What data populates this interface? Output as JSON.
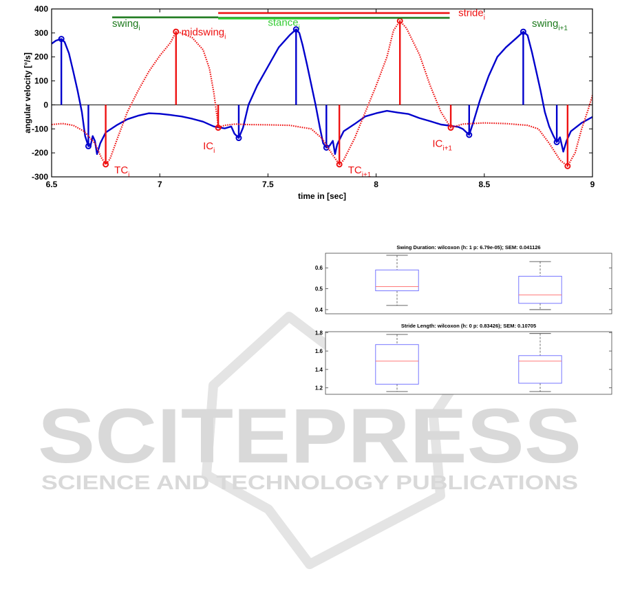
{
  "watermark": {
    "word": "SCITEPRESS",
    "tagline": "SCIENCE AND TECHNOLOGY PUBLICATIONS",
    "color": "#d9d9d9"
  },
  "chart_data": [
    {
      "type": "line",
      "xlabel": "time in [sec]",
      "ylabel": "angular velocity [°/s]",
      "xlim": [
        6.5,
        9
      ],
      "ylim": [
        -300,
        400
      ],
      "xticks": [
        6.5,
        7,
        7.5,
        8,
        8.5,
        9
      ],
      "yticks": [
        -300,
        -200,
        -100,
        0,
        100,
        200,
        300,
        400
      ],
      "grid": false,
      "series": [
        {
          "color": "#0000cc",
          "style": "solid",
          "points": [
            [
              6.5,
              255
            ],
            [
              6.52,
              268
            ],
            [
              6.545,
              275
            ],
            [
              6.56,
              262
            ],
            [
              6.58,
              215
            ],
            [
              6.6,
              140
            ],
            [
              6.62,
              60
            ],
            [
              6.64,
              -30
            ],
            [
              6.655,
              -130
            ],
            [
              6.67,
              -172
            ],
            [
              6.68,
              -170
            ],
            [
              6.69,
              -130
            ],
            [
              6.7,
              -150
            ],
            [
              6.71,
              -205
            ],
            [
              6.725,
              -160
            ],
            [
              6.75,
              -115
            ],
            [
              6.8,
              -85
            ],
            [
              6.85,
              -60
            ],
            [
              6.9,
              -45
            ],
            [
              6.95,
              -35
            ],
            [
              7.0,
              -37
            ],
            [
              7.05,
              -42
            ],
            [
              7.1,
              -48
            ],
            [
              7.15,
              -58
            ],
            [
              7.2,
              -70
            ],
            [
              7.25,
              -90
            ],
            [
              7.3,
              -98
            ],
            [
              7.33,
              -90
            ],
            [
              7.345,
              -120
            ],
            [
              7.365,
              -138
            ],
            [
              7.385,
              -95
            ],
            [
              7.41,
              0
            ],
            [
              7.45,
              80
            ],
            [
              7.5,
              160
            ],
            [
              7.55,
              240
            ],
            [
              7.6,
              290
            ],
            [
              7.63,
              315
            ],
            [
              7.645,
              300
            ],
            [
              7.66,
              250
            ],
            [
              7.68,
              170
            ],
            [
              7.7,
              85
            ],
            [
              7.72,
              0
            ],
            [
              7.74,
              -95
            ],
            [
              7.755,
              -160
            ],
            [
              7.77,
              -178
            ],
            [
              7.785,
              -170
            ],
            [
              7.8,
              -150
            ],
            [
              7.81,
              -205
            ],
            [
              7.82,
              -165
            ],
            [
              7.85,
              -110
            ],
            [
              7.9,
              -80
            ],
            [
              7.95,
              -48
            ],
            [
              8.0,
              -35
            ],
            [
              8.05,
              -25
            ],
            [
              8.1,
              -32
            ],
            [
              8.15,
              -38
            ],
            [
              8.2,
              -55
            ],
            [
              8.25,
              -68
            ],
            [
              8.3,
              -82
            ],
            [
              8.35,
              -88
            ],
            [
              8.38,
              -92
            ],
            [
              8.4,
              -100
            ],
            [
              8.43,
              -125
            ],
            [
              8.45,
              -70
            ],
            [
              8.48,
              20
            ],
            [
              8.52,
              120
            ],
            [
              8.56,
              200
            ],
            [
              8.6,
              240
            ],
            [
              8.65,
              280
            ],
            [
              8.68,
              305
            ],
            [
              8.7,
              290
            ],
            [
              8.72,
              220
            ],
            [
              8.74,
              140
            ],
            [
              8.76,
              60
            ],
            [
              8.78,
              -30
            ],
            [
              8.8,
              -90
            ],
            [
              8.82,
              -130
            ],
            [
              8.835,
              -155
            ],
            [
              8.85,
              -135
            ],
            [
              8.865,
              -195
            ],
            [
              8.88,
              -150
            ],
            [
              8.9,
              -110
            ],
            [
              8.95,
              -75
            ],
            [
              9.0,
              -50
            ]
          ],
          "markers": [
            [
              6.545,
              275
            ],
            [
              6.67,
              -172
            ],
            [
              7.365,
              -138
            ],
            [
              7.63,
              315
            ],
            [
              7.77,
              -178
            ],
            [
              8.43,
              -125
            ],
            [
              8.68,
              305
            ],
            [
              8.835,
              -155
            ]
          ],
          "stems": [
            6.545,
            6.67,
            7.365,
            7.63,
            7.77,
            8.43,
            8.68,
            8.835
          ]
        },
        {
          "color": "#ee1111",
          "style": "dotted",
          "points": [
            [
              6.5,
              -82
            ],
            [
              6.55,
              -78
            ],
            [
              6.6,
              -85
            ],
            [
              6.65,
              -110
            ],
            [
              6.7,
              -160
            ],
            [
              6.73,
              -220
            ],
            [
              6.75,
              -248
            ],
            [
              6.77,
              -225
            ],
            [
              6.8,
              -150
            ],
            [
              6.85,
              -30
            ],
            [
              6.9,
              60
            ],
            [
              6.95,
              140
            ],
            [
              7.0,
              205
            ],
            [
              7.05,
              260
            ],
            [
              7.075,
              305
            ],
            [
              7.1,
              300
            ],
            [
              7.15,
              280
            ],
            [
              7.2,
              230
            ],
            [
              7.23,
              150
            ],
            [
              7.25,
              50
            ],
            [
              7.265,
              -50
            ],
            [
              7.27,
              -95
            ],
            [
              7.3,
              -85
            ],
            [
              7.35,
              -80
            ],
            [
              7.4,
              -82
            ],
            [
              7.5,
              -83
            ],
            [
              7.6,
              -85
            ],
            [
              7.7,
              -100
            ],
            [
              7.75,
              -140
            ],
            [
              7.8,
              -210
            ],
            [
              7.83,
              -248
            ],
            [
              7.85,
              -230
            ],
            [
              7.9,
              -140
            ],
            [
              7.95,
              -30
            ],
            [
              8.0,
              80
            ],
            [
              8.05,
              200
            ],
            [
              8.08,
              310
            ],
            [
              8.11,
              350
            ],
            [
              8.14,
              320
            ],
            [
              8.2,
              210
            ],
            [
              8.25,
              80
            ],
            [
              8.3,
              -30
            ],
            [
              8.345,
              -95
            ],
            [
              8.4,
              -80
            ],
            [
              8.5,
              -75
            ],
            [
              8.6,
              -78
            ],
            [
              8.7,
              -85
            ],
            [
              8.75,
              -100
            ],
            [
              8.8,
              -160
            ],
            [
              8.85,
              -230
            ],
            [
              8.885,
              -255
            ],
            [
              8.92,
              -200
            ],
            [
              8.95,
              -100
            ],
            [
              8.98,
              -20
            ],
            [
              9.0,
              40
            ]
          ],
          "markers": [
            [
              6.75,
              -248
            ],
            [
              7.075,
              305
            ],
            [
              7.27,
              -95
            ],
            [
              7.83,
              -248
            ],
            [
              8.11,
              350
            ],
            [
              8.345,
              -95
            ],
            [
              8.885,
              -255
            ]
          ],
          "stems": [
            6.75,
            7.075,
            7.27,
            7.83,
            8.11,
            8.345,
            8.885
          ]
        }
      ],
      "phases": [
        {
          "color": "#1d7a1d",
          "x": [
            6.78,
            7.27
          ],
          "y": 365
        },
        {
          "color": "#1d7a1d",
          "x": [
            7.27,
            8.34
          ],
          "y": 363
        },
        {
          "color": "#33cc33",
          "x": [
            7.27,
            7.83
          ],
          "y": 360
        },
        {
          "color": "#ee1111",
          "x": [
            7.27,
            8.34
          ],
          "y": 383
        }
      ],
      "annotations": [
        {
          "text": "swing",
          "sub": "i",
          "x": 6.78,
          "y": 325,
          "color": "#1d7a1d"
        },
        {
          "text": "stance",
          "sub": "i",
          "x": 7.5,
          "y": 330,
          "color": "#33cc33"
        },
        {
          "text": "swing",
          "sub": "i+1",
          "x": 8.72,
          "y": 325,
          "color": "#1d7a1d"
        },
        {
          "text": "stride",
          "sub": "i",
          "x": 8.38,
          "y": 370,
          "color": "#ee1111"
        },
        {
          "text": "midswing",
          "sub": "i",
          "x": 7.1,
          "y": 290,
          "color": "#ee1111"
        },
        {
          "text": "IC",
          "sub": "i",
          "x": 7.2,
          "y": -185,
          "color": "#ee1111"
        },
        {
          "text": "IC",
          "sub": "i+1",
          "x": 8.26,
          "y": -175,
          "color": "#ee1111"
        },
        {
          "text": "TC",
          "sub": "i",
          "x": 6.79,
          "y": -285,
          "color": "#ee1111"
        },
        {
          "text": "TC",
          "sub": "i+1",
          "x": 7.87,
          "y": -285,
          "color": "#ee1111"
        }
      ]
    },
    {
      "type": "box",
      "title": "Swing Duration: wilcoxon (h: 1 p: 6.79e-05); SEM: 0.041126",
      "ylim": [
        0.38,
        0.67
      ],
      "yticks": [
        0.4,
        0.5,
        0.6
      ],
      "box_color": "#6666ff",
      "median_color": "#ff6666",
      "whisker_color": "#333333",
      "boxes": [
        {
          "min": 0.42,
          "q1": 0.49,
          "median": 0.51,
          "q3": 0.59,
          "max": 0.66
        },
        {
          "min": 0.4,
          "q1": 0.43,
          "median": 0.47,
          "q3": 0.56,
          "max": 0.63
        }
      ]
    },
    {
      "type": "box",
      "title": "Stride Length: wilcoxon (h: 0 p: 0.83426); SEM: 0.10705",
      "ylim": [
        1.13,
        1.81
      ],
      "yticks": [
        1.2,
        1.4,
        1.6,
        1.8
      ],
      "box_color": "#6666ff",
      "median_color": "#ff6666",
      "whisker_color": "#333333",
      "boxes": [
        {
          "min": 1.16,
          "q1": 1.24,
          "median": 1.49,
          "q3": 1.67,
          "max": 1.78
        },
        {
          "min": 1.16,
          "q1": 1.25,
          "median": 1.49,
          "q3": 1.55,
          "max": 1.79
        }
      ]
    }
  ]
}
